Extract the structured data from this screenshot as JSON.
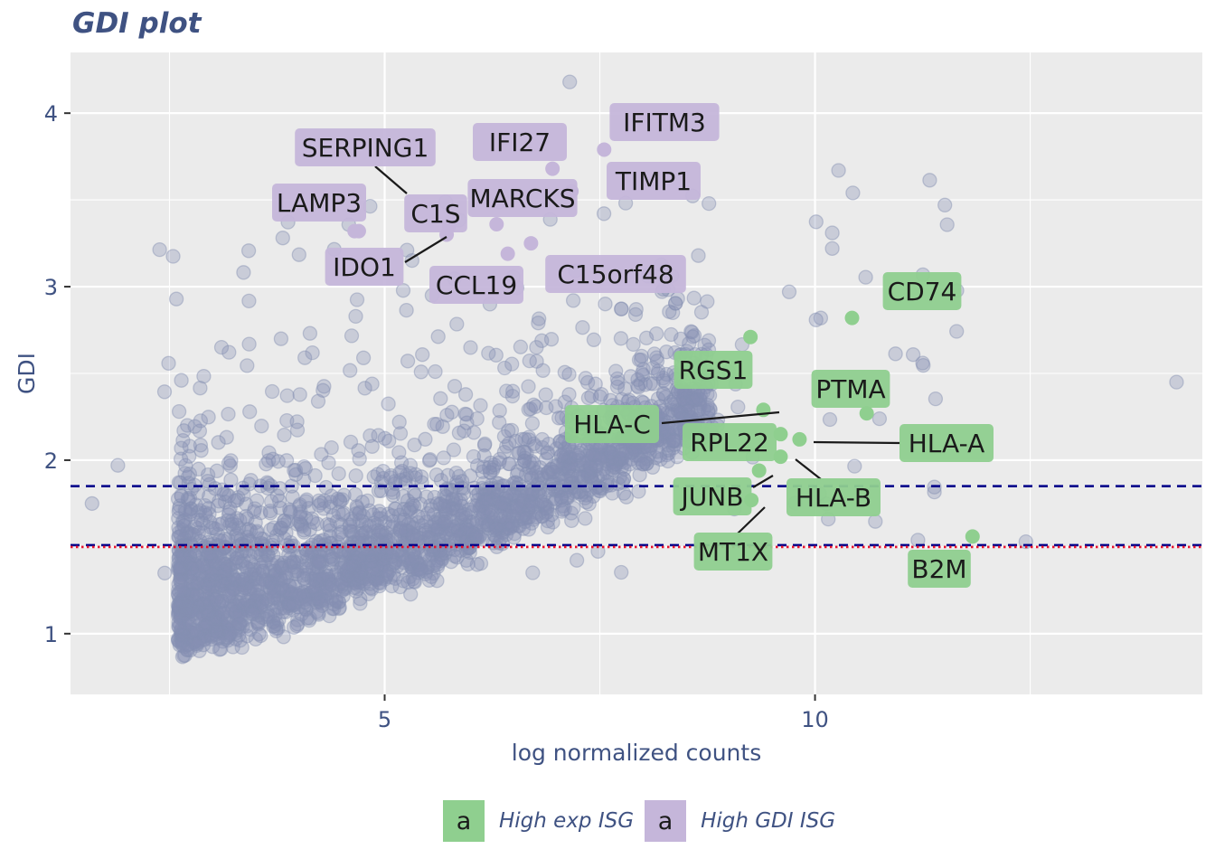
{
  "title": "GDI plot",
  "chart_data": {
    "type": "scatter",
    "title": "GDI plot",
    "xlabel": "log normalized counts",
    "ylabel": "GDI",
    "xlim": [
      1.35,
      14.5
    ],
    "ylim": [
      0.65,
      4.35
    ],
    "x_ticks": [
      5,
      10
    ],
    "x_tick_labels": [
      "5",
      "10"
    ],
    "y_ticks": [
      1,
      2,
      3,
      4
    ],
    "y_tick_labels": [
      "1",
      "2",
      "3",
      "4"
    ],
    "grid": true,
    "hlines": [
      {
        "y": 1.85,
        "style": "dashed",
        "color": "#00008b"
      },
      {
        "y": 1.51,
        "style": "dashed",
        "color": "#00008b"
      },
      {
        "y": 1.5,
        "style": "dotted",
        "color": "#e8122d"
      }
    ],
    "background_color": "#8590b2",
    "background_points_note": "thousands of gray-blue points (all genes)",
    "legend_position": "bottom",
    "series": [
      {
        "name": "High exp ISG",
        "color": "#8fcf8f",
        "points": [
          {
            "label": "CD74",
            "x": 10.43,
            "y": 2.82
          },
          {
            "label": "RGS1",
            "x": 9.25,
            "y": 2.71
          },
          {
            "label": "PTMA",
            "x": 10.6,
            "y": 2.27
          },
          {
            "label": "HLA-C",
            "x": 9.4,
            "y": 2.29
          },
          {
            "label": "RPL22",
            "x": 9.6,
            "y": 2.15
          },
          {
            "label": "HLA-A",
            "x": 9.82,
            "y": 2.12
          },
          {
            "label": "HLA-B",
            "x": 9.6,
            "y": 2.02
          },
          {
            "label": "JUNB",
            "x": 9.35,
            "y": 1.94
          },
          {
            "label": "MT1X",
            "x": 9.26,
            "y": 1.77
          },
          {
            "label": "B2M",
            "x": 11.83,
            "y": 1.56
          }
        ]
      },
      {
        "name": "High GDI ISG",
        "color": "#c5b6da",
        "points": [
          {
            "label": "IFITM3",
            "x": 7.55,
            "y": 3.79
          },
          {
            "label": "IFI27",
            "x": 6.95,
            "y": 3.68
          },
          {
            "label": "TIMP1",
            "x": 7.17,
            "y": 3.55
          },
          {
            "label": "SERPING1",
            "x": 4.7,
            "y": 3.32
          },
          {
            "label": "C1S",
            "x": 5.75,
            "y": 3.35
          },
          {
            "label": "MARCKS",
            "x": 6.3,
            "y": 3.36
          },
          {
            "label": "LAMP3",
            "x": 4.65,
            "y": 3.32
          },
          {
            "label": "IDO1",
            "x": 5.72,
            "y": 3.3
          },
          {
            "label": "CCL19",
            "x": 6.43,
            "y": 3.19
          },
          {
            "label": "C15orf48",
            "x": 6.7,
            "y": 3.25
          }
        ]
      }
    ],
    "annotations": [
      "SERPING1",
      "IFI27",
      "IFITM3",
      "LAMP3",
      "C1S",
      "MARCKS",
      "TIMP1",
      "IDO1",
      "CCL19",
      "C15orf48",
      "CD74",
      "RGS1",
      "PTMA",
      "HLA-C",
      "RPL22",
      "HLA-A",
      "JUNB",
      "HLA-B",
      "MT1X",
      "B2M"
    ]
  },
  "legend": {
    "key_text": "a",
    "items": [
      {
        "label": "High exp ISG",
        "color": "#8fcf8f"
      },
      {
        "label": "High GDI ISG",
        "color": "#c5b6da"
      }
    ]
  }
}
